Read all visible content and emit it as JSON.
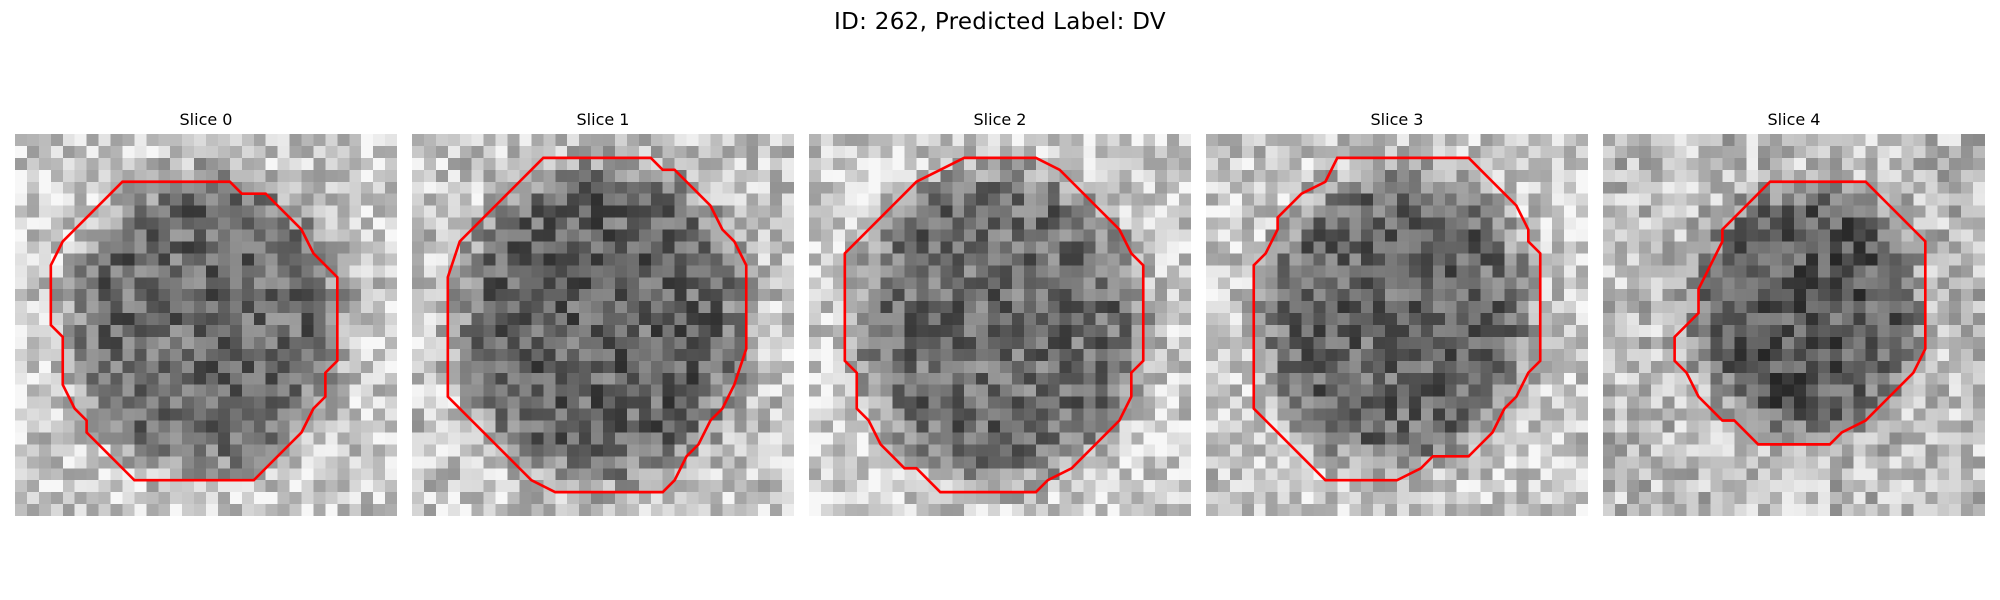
{
  "figure": {
    "title": "ID: 262, Predicted Label: DV"
  },
  "slices": [
    {
      "title": "Slice 0"
    },
    {
      "title": "Slice 1"
    },
    {
      "title": "Slice 2"
    },
    {
      "title": "Slice 3"
    },
    {
      "title": "Slice 4"
    }
  ],
  "colors": {
    "contour": "#ff0000",
    "background": "#ffffff"
  },
  "colormap": "gray",
  "grid_size": 32
}
